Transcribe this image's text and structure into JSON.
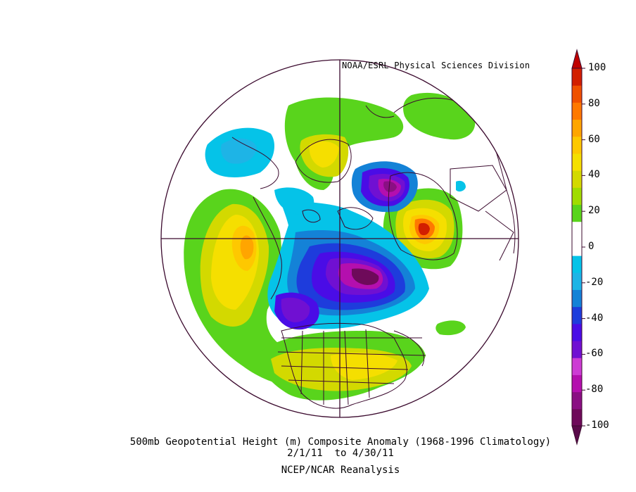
{
  "credit": "NOAA/ESRL Physical Sciences Division",
  "title": {
    "line1": "500mb Geopotential Height (m) Composite Anomaly (1968-1996 Climatology)",
    "line2": "2/1/11  to 4/30/11",
    "line3": "NCEP/NCAR Reanalysis"
  },
  "colorbar": {
    "labels": [
      "100",
      "80",
      "60",
      "40",
      "20",
      "0",
      "-20",
      "-40",
      "-60",
      "-80",
      "-100"
    ],
    "colors": [
      "#6e0a5a",
      "#8a0f83",
      "#b40fae",
      "#cd3cd4",
      "#7010d2",
      "#4a0ce6",
      "#1e3cdc",
      "#1482d7",
      "#1eb4e6",
      "#05c3e8",
      "#ffffff",
      "#ffffff",
      "#59d41c",
      "#a0dc00",
      "#d3d900",
      "#f5df00",
      "#fec800",
      "#ffa500",
      "#ff7800",
      "#f05000",
      "#d21e00"
    ]
  }
}
